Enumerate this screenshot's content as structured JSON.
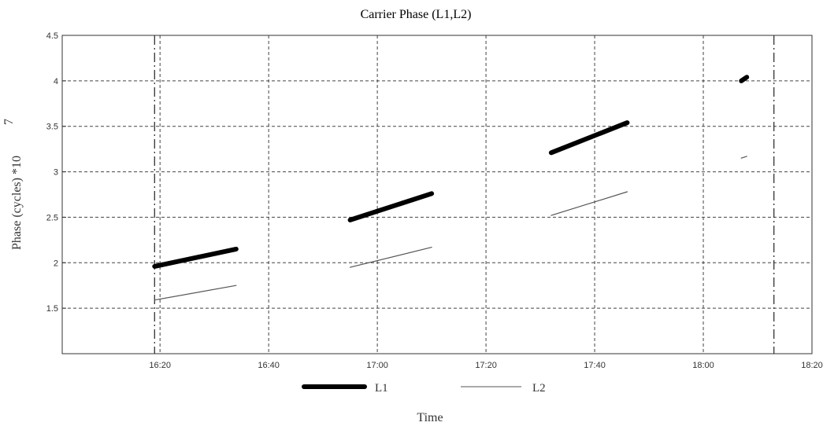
{
  "chart_data": {
    "type": "line",
    "title": "Carrier Phase (L1,L2)",
    "xlabel": "Time",
    "ylabel": "Phase (cycles) *10",
    "ylabel_exponent": "7",
    "x_ticks": [
      "16:20",
      "16:40",
      "17:00",
      "17:20",
      "17:40",
      "18:00",
      "18:20"
    ],
    "x_tick_minutes": [
      980,
      1000,
      1020,
      1040,
      1060,
      1080,
      1100
    ],
    "xlim_minutes": [
      962,
      1100
    ],
    "y_ticks": [
      "1.5",
      "2",
      "2.5",
      "3",
      "3.5",
      "4",
      "4.5"
    ],
    "y_tick_values": [
      1.5,
      2,
      2.5,
      3,
      3.5,
      4,
      4.5
    ],
    "ylim": [
      1.0,
      4.5
    ],
    "grid": true,
    "vertical_markers_minutes": [
      979,
      1093
    ],
    "legend_position": "bottom",
    "series": [
      {
        "name": "L1",
        "style": "thick",
        "color": "#000000",
        "segments": [
          [
            {
              "x": "16:19",
              "y": 1.96
            },
            {
              "x": "16:34",
              "y": 2.15
            }
          ],
          [
            {
              "x": "16:55",
              "y": 2.47
            },
            {
              "x": "17:10",
              "y": 2.76
            }
          ],
          [
            {
              "x": "17:32",
              "y": 3.21
            },
            {
              "x": "17:46",
              "y": 3.54
            }
          ],
          [
            {
              "x": "18:07",
              "y": 4.0
            },
            {
              "x": "18:08",
              "y": 4.04
            }
          ]
        ]
      },
      {
        "name": "L2",
        "style": "thin",
        "color": "#555555",
        "segments": [
          [
            {
              "x": "16:19",
              "y": 1.59
            },
            {
              "x": "16:34",
              "y": 1.75
            }
          ],
          [
            {
              "x": "16:55",
              "y": 1.95
            },
            {
              "x": "17:10",
              "y": 2.17
            }
          ],
          [
            {
              "x": "17:32",
              "y": 2.52
            },
            {
              "x": "17:46",
              "y": 2.78
            }
          ],
          [
            {
              "x": "18:07",
              "y": 3.15
            },
            {
              "x": "18:08",
              "y": 3.17
            }
          ]
        ]
      }
    ]
  }
}
